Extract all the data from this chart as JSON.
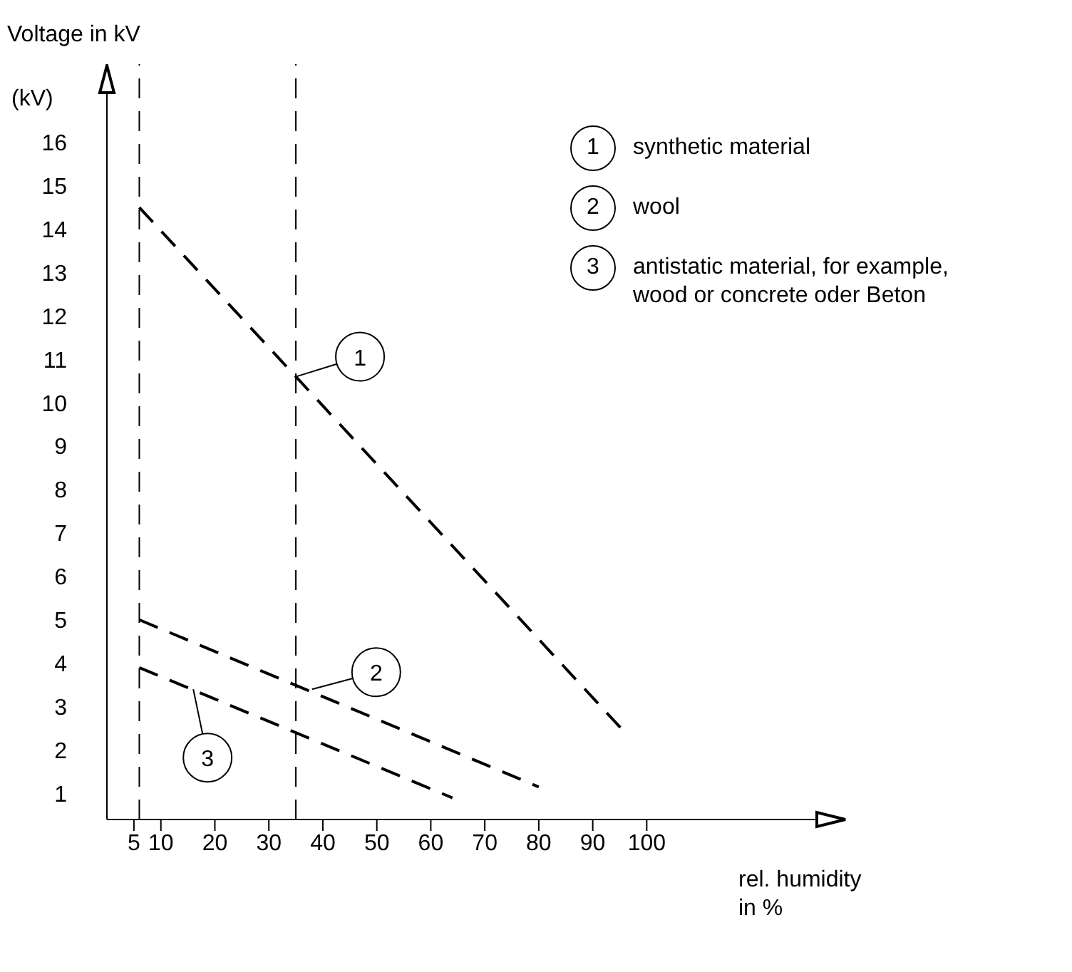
{
  "chart_data": {
    "type": "line",
    "ylabel": "Voltage in kV",
    "xlabel": "rel. humidity\nin %",
    "annotations": [
      {
        "text": "1",
        "x": 35,
        "y": 10.6
      },
      {
        "text": "2",
        "x": 38,
        "y": 3.4
      },
      {
        "text": "3",
        "x": 16,
        "y": 3.4
      },
      "(kV)"
    ],
    "series": [
      {
        "name": "synthetic material",
        "color": "#000000",
        "x": [
          6,
          96
        ],
        "values": [
          14.5,
          2.4
        ]
      },
      {
        "name": "wool",
        "color": "#000000",
        "x": [
          6,
          80
        ],
        "values": [
          5.0,
          1.15
        ]
      },
      {
        "name": "antistatic material, for example, wood or concrete oder Beton",
        "color": "#000000",
        "x": [
          6,
          64
        ],
        "values": [
          3.9,
          0.9
        ]
      }
    ],
    "xlim": [
      0,
      136
    ],
    "xticks": [
      5,
      10,
      20,
      30,
      40,
      50,
      60,
      70,
      80,
      90,
      100
    ],
    "ylim": [
      0.4,
      17.8
    ],
    "yticks": [
      1,
      2,
      3,
      4,
      5,
      6,
      7,
      8,
      9,
      10,
      11,
      12,
      13,
      14,
      15,
      16
    ],
    "ref_lines": [
      {
        "axis": "x",
        "value": 6,
        "line_style": "dashed"
      },
      {
        "axis": "x",
        "value": 35,
        "line_style": "dashed"
      }
    ],
    "grid": false,
    "legend": "top right",
    "marker": "none",
    "line_style": "dashed"
  }
}
